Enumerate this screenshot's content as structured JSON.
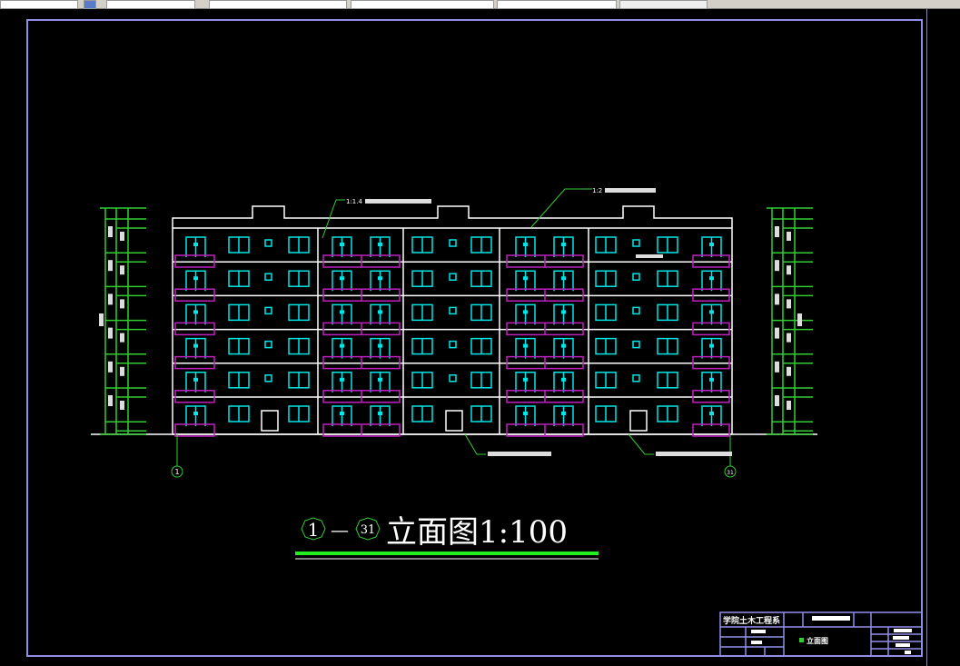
{
  "toolbar": {
    "tabs": [
      "",
      "",
      "",
      "",
      "",
      ""
    ]
  },
  "colors": {
    "frame": "#8f8fe8",
    "outline": "#ffffff",
    "window": "#00e5e5",
    "balcony": "#c020c0",
    "dimension": "#33cc33",
    "title_underline": "#22ee22",
    "axis": "#33cc33"
  },
  "drawing": {
    "title": "立面图1:100",
    "axis_start": "1",
    "axis_end": "31",
    "axis_dash": "—",
    "floors": 6,
    "annotations": [
      "1:1.4",
      "1:2"
    ]
  },
  "title_block": {
    "organization": "学院土木工程系",
    "drawing_name": "立面图"
  }
}
